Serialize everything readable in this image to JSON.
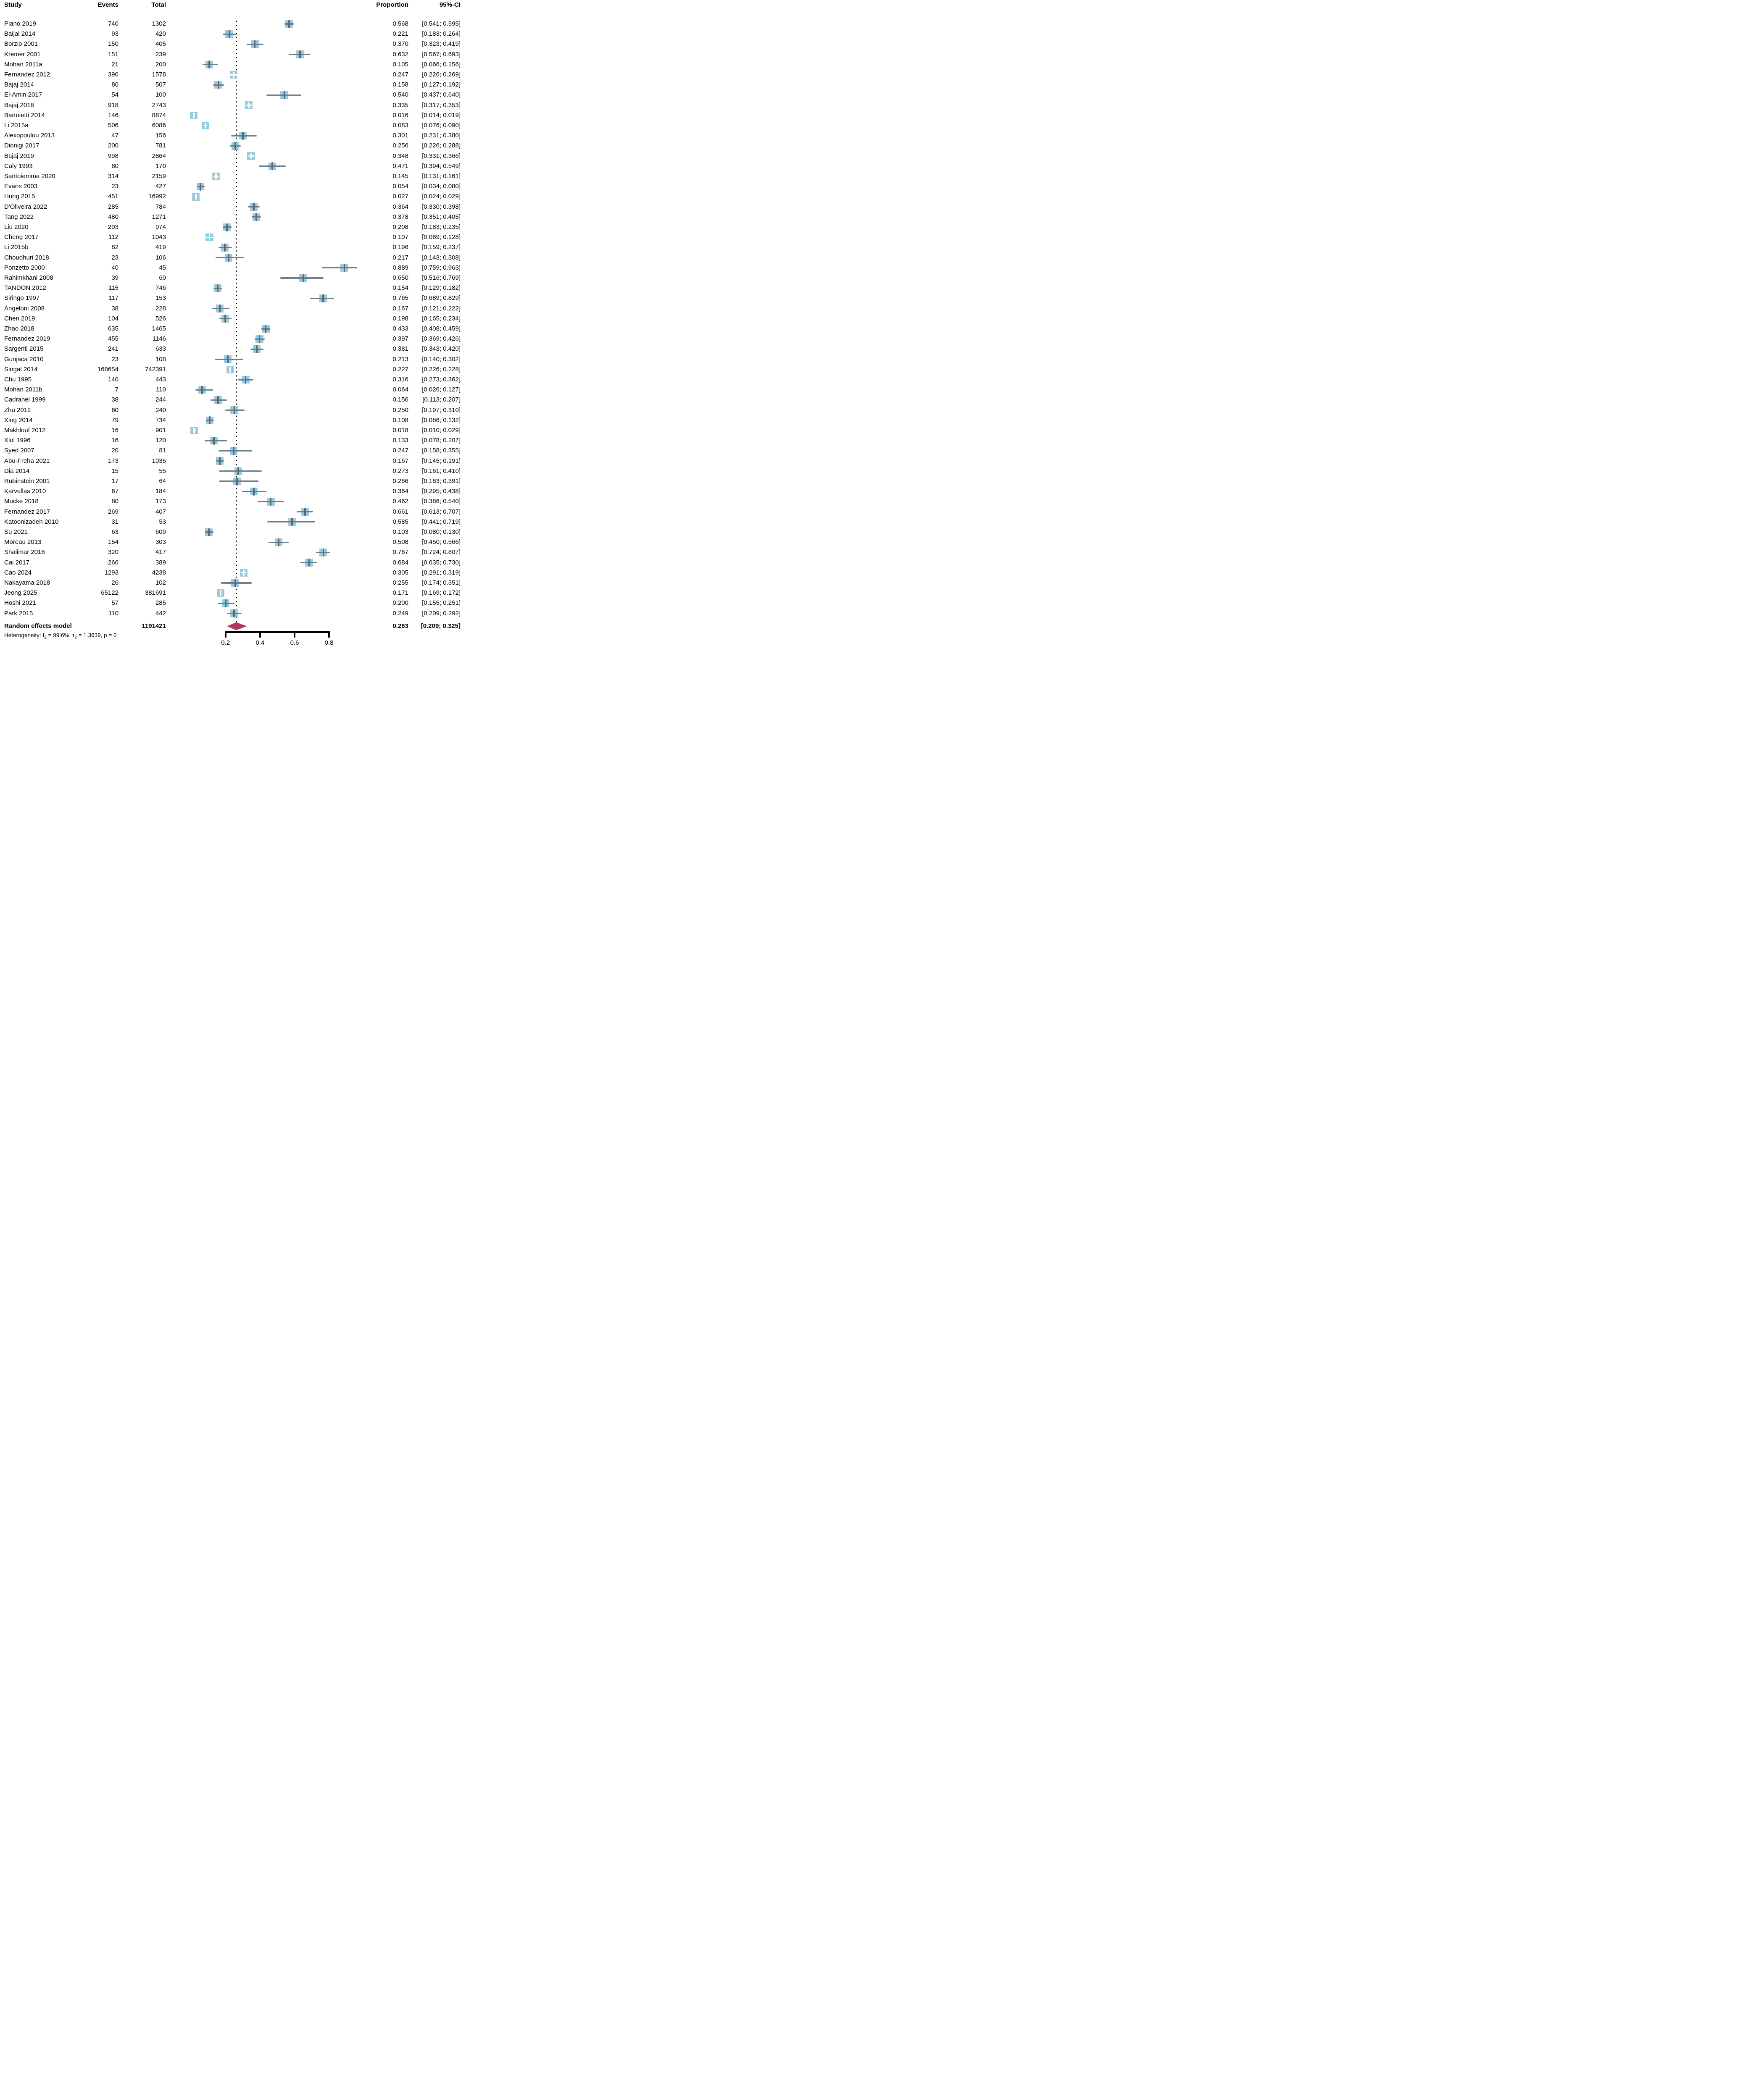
{
  "chart_data": {
    "type": "forest",
    "columns": {
      "study": "Study",
      "events": "Events",
      "total": "Total",
      "proportion": "Proportion",
      "ci": "95%-CI"
    },
    "studies": [
      {
        "name": "Piano 2019",
        "events": 740,
        "total": 1302,
        "p": 0.568,
        "lo": 0.541,
        "hi": 0.595
      },
      {
        "name": "Baijal 2014",
        "events": 93,
        "total": 420,
        "p": 0.221,
        "lo": 0.183,
        "hi": 0.264
      },
      {
        "name": "Borzio 2001",
        "events": 150,
        "total": 405,
        "p": 0.37,
        "lo": 0.323,
        "hi": 0.419
      },
      {
        "name": "Kremer 2001",
        "events": 151,
        "total": 239,
        "p": 0.632,
        "lo": 0.567,
        "hi": 0.693
      },
      {
        "name": "Mohan 2011a",
        "events": 21,
        "total": 200,
        "p": 0.105,
        "lo": 0.066,
        "hi": 0.156
      },
      {
        "name": "Fernandez 2012",
        "events": 390,
        "total": 1578,
        "p": 0.247,
        "lo": 0.226,
        "hi": 0.269
      },
      {
        "name": "Bajaj 2014",
        "events": 80,
        "total": 507,
        "p": 0.158,
        "lo": 0.127,
        "hi": 0.192
      },
      {
        "name": "El-Amin 2017",
        "events": 54,
        "total": 100,
        "p": 0.54,
        "lo": 0.437,
        "hi": 0.64
      },
      {
        "name": "Bajaj 2018",
        "events": 918,
        "total": 2743,
        "p": 0.335,
        "lo": 0.317,
        "hi": 0.353
      },
      {
        "name": "Bartoletti 2014",
        "events": 146,
        "total": 8874,
        "p": 0.016,
        "lo": 0.014,
        "hi": 0.019
      },
      {
        "name": "Li 2015a",
        "events": 506,
        "total": 6086,
        "p": 0.083,
        "lo": 0.076,
        "hi": 0.09
      },
      {
        "name": "Alexopoulou 2013",
        "events": 47,
        "total": 156,
        "p": 0.301,
        "lo": 0.231,
        "hi": 0.38
      },
      {
        "name": "Dionigi 2017",
        "events": 200,
        "total": 781,
        "p": 0.256,
        "lo": 0.226,
        "hi": 0.288
      },
      {
        "name": "Bajaj 2019",
        "events": 998,
        "total": 2864,
        "p": 0.348,
        "lo": 0.331,
        "hi": 0.366
      },
      {
        "name": "Caly 1993",
        "events": 80,
        "total": 170,
        "p": 0.471,
        "lo": 0.394,
        "hi": 0.549
      },
      {
        "name": "Santoiemma 2020",
        "events": 314,
        "total": 2159,
        "p": 0.145,
        "lo": 0.131,
        "hi": 0.161
      },
      {
        "name": "Evans 2003",
        "events": 23,
        "total": 427,
        "p": 0.054,
        "lo": 0.034,
        "hi": 0.08
      },
      {
        "name": "Hung 2015",
        "events": 451,
        "total": 16992,
        "p": 0.027,
        "lo": 0.024,
        "hi": 0.029
      },
      {
        "name": "D'Oliveira 2022",
        "events": 285,
        "total": 784,
        "p": 0.364,
        "lo": 0.33,
        "hi": 0.398
      },
      {
        "name": "Tang 2022",
        "events": 480,
        "total": 1271,
        "p": 0.378,
        "lo": 0.351,
        "hi": 0.405
      },
      {
        "name": "Liu 2020",
        "events": 203,
        "total": 974,
        "p": 0.208,
        "lo": 0.183,
        "hi": 0.235
      },
      {
        "name": "Cheng 2017",
        "events": 112,
        "total": 1043,
        "p": 0.107,
        "lo": 0.089,
        "hi": 0.128
      },
      {
        "name": "Li 2015b",
        "events": 82,
        "total": 419,
        "p": 0.196,
        "lo": 0.159,
        "hi": 0.237
      },
      {
        "name": "Choudhuri 2018",
        "events": 23,
        "total": 106,
        "p": 0.217,
        "lo": 0.143,
        "hi": 0.308
      },
      {
        "name": "Ponzetto 2000",
        "events": 40,
        "total": 45,
        "p": 0.889,
        "lo": 0.759,
        "hi": 0.963
      },
      {
        "name": "Rahimkhani 2008",
        "events": 39,
        "total": 60,
        "p": 0.65,
        "lo": 0.516,
        "hi": 0.769
      },
      {
        "name": "TANDON 2012",
        "events": 115,
        "total": 746,
        "p": 0.154,
        "lo": 0.129,
        "hi": 0.182
      },
      {
        "name": "Siringo 1997",
        "events": 117,
        "total": 153,
        "p": 0.765,
        "lo": 0.689,
        "hi": 0.829
      },
      {
        "name": "Angeloni 2008",
        "events": 38,
        "total": 228,
        "p": 0.167,
        "lo": 0.121,
        "hi": 0.222
      },
      {
        "name": "Chen 2019",
        "events": 104,
        "total": 526,
        "p": 0.198,
        "lo": 0.165,
        "hi": 0.234
      },
      {
        "name": "Zhao 2018",
        "events": 635,
        "total": 1465,
        "p": 0.433,
        "lo": 0.408,
        "hi": 0.459
      },
      {
        "name": "Fernandez 2019",
        "events": 455,
        "total": 1146,
        "p": 0.397,
        "lo": 0.369,
        "hi": 0.426
      },
      {
        "name": "Sargenti 2015",
        "events": 241,
        "total": 633,
        "p": 0.381,
        "lo": 0.343,
        "hi": 0.42
      },
      {
        "name": "Gunjaca 2010",
        "events": 23,
        "total": 108,
        "p": 0.213,
        "lo": 0.14,
        "hi": 0.302
      },
      {
        "name": "Singal 2014",
        "events": 168654,
        "total": 742391,
        "p": 0.227,
        "lo": 0.226,
        "hi": 0.228
      },
      {
        "name": "Chu 1995",
        "events": 140,
        "total": 443,
        "p": 0.316,
        "lo": 0.273,
        "hi": 0.362
      },
      {
        "name": "Mohan 2011b",
        "events": 7,
        "total": 110,
        "p": 0.064,
        "lo": 0.026,
        "hi": 0.127
      },
      {
        "name": "Cadranel 1999",
        "events": 38,
        "total": 244,
        "p": 0.156,
        "lo": 0.113,
        "hi": 0.207
      },
      {
        "name": "Zhu 2012",
        "events": 60,
        "total": 240,
        "p": 0.25,
        "lo": 0.197,
        "hi": 0.31
      },
      {
        "name": "Xing 2014",
        "events": 79,
        "total": 734,
        "p": 0.108,
        "lo": 0.086,
        "hi": 0.132
      },
      {
        "name": "Makhlouf 2012",
        "events": 16,
        "total": 901,
        "p": 0.018,
        "lo": 0.01,
        "hi": 0.029
      },
      {
        "name": "Xiol 1996",
        "events": 16,
        "total": 120,
        "p": 0.133,
        "lo": 0.078,
        "hi": 0.207
      },
      {
        "name": "Syed 2007",
        "events": 20,
        "total": 81,
        "p": 0.247,
        "lo": 0.158,
        "hi": 0.355
      },
      {
        "name": "Abu-Freha 2021",
        "events": 173,
        "total": 1035,
        "p": 0.167,
        "lo": 0.145,
        "hi": 0.191
      },
      {
        "name": "Dia 2014",
        "events": 15,
        "total": 55,
        "p": 0.273,
        "lo": 0.161,
        "hi": 0.41
      },
      {
        "name": "Rubinstein 2001",
        "events": 17,
        "total": 64,
        "p": 0.266,
        "lo": 0.163,
        "hi": 0.391
      },
      {
        "name": "Karvellas 2010",
        "events": 67,
        "total": 184,
        "p": 0.364,
        "lo": 0.295,
        "hi": 0.438
      },
      {
        "name": "Mucke 2018",
        "events": 80,
        "total": 173,
        "p": 0.462,
        "lo": 0.386,
        "hi": 0.54
      },
      {
        "name": "Fernandez 2017",
        "events": 269,
        "total": 407,
        "p": 0.661,
        "lo": 0.613,
        "hi": 0.707
      },
      {
        "name": "Katoonizadeh 2010",
        "events": 31,
        "total": 53,
        "p": 0.585,
        "lo": 0.441,
        "hi": 0.719
      },
      {
        "name": "Su 2021",
        "events": 63,
        "total": 609,
        "p": 0.103,
        "lo": 0.08,
        "hi": 0.13
      },
      {
        "name": "Moreau 2013",
        "events": 154,
        "total": 303,
        "p": 0.508,
        "lo": 0.45,
        "hi": 0.566
      },
      {
        "name": "Shalimar 2018",
        "events": 320,
        "total": 417,
        "p": 0.767,
        "lo": 0.724,
        "hi": 0.807
      },
      {
        "name": "Cai 2017",
        "events": 266,
        "total": 389,
        "p": 0.684,
        "lo": 0.635,
        "hi": 0.73
      },
      {
        "name": "Cao 2024",
        "events": 1293,
        "total": 4238,
        "p": 0.305,
        "lo": 0.291,
        "hi": 0.319
      },
      {
        "name": "Nakayama 2018",
        "events": 26,
        "total": 102,
        "p": 0.255,
        "lo": 0.174,
        "hi": 0.351
      },
      {
        "name": "Jeong 2025",
        "events": 65122,
        "total": 381691,
        "p": 0.171,
        "lo": 0.169,
        "hi": 0.172
      },
      {
        "name": "Hoshi 2021",
        "events": 57,
        "total": 285,
        "p": 0.2,
        "lo": 0.155,
        "hi": 0.251
      },
      {
        "name": "Park 2015",
        "events": 110,
        "total": 442,
        "p": 0.249,
        "lo": 0.209,
        "hi": 0.292
      }
    ],
    "summary": {
      "label": "Random effects model",
      "total": 1191421,
      "p": 0.263,
      "lo": 0.209,
      "hi": 0.325
    },
    "heterogeneity": {
      "prefix": "Heterogeneity: I",
      "sub1": "2",
      "mid": " = 99.6%, τ",
      "sub2": "2",
      "suffix": " = 1.3639, p = 0"
    },
    "axis": {
      "ticks": [
        0.2,
        0.4,
        0.6,
        0.8
      ],
      "pooled": 0.263
    },
    "colors": {
      "square": "#92cbe4",
      "square_border": "#c3c3c3",
      "ci_line": "#68808f",
      "ci_tick": "#56697a",
      "white_marker": "#ffffff",
      "diamond": "#b23565",
      "dotted_line": "#000000",
      "axis": "#000000"
    }
  }
}
